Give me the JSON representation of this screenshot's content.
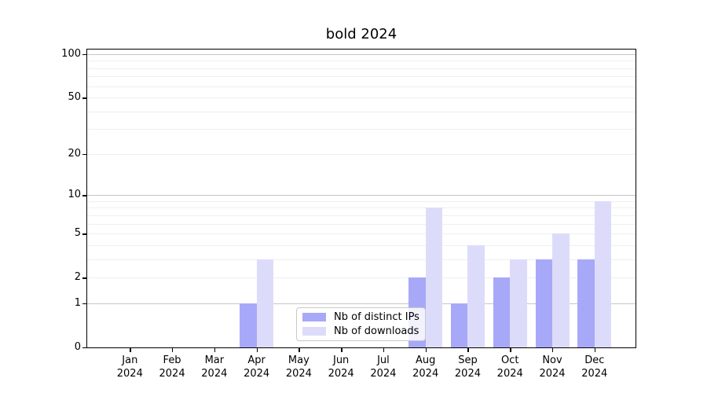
{
  "chart_data": {
    "type": "bar",
    "title": "bold 2024",
    "categories": [
      "Jan 2024",
      "Feb 2024",
      "Mar 2024",
      "Apr 2024",
      "May 2024",
      "Jun 2024",
      "Jul 2024",
      "Aug 2024",
      "Sep 2024",
      "Oct 2024",
      "Nov 2024",
      "Dec 2024"
    ],
    "x_months": [
      "Jan",
      "Feb",
      "Mar",
      "Apr",
      "May",
      "Jun",
      "Jul",
      "Aug",
      "Sep",
      "Oct",
      "Nov",
      "Dec"
    ],
    "x_year": "2024",
    "series": [
      {
        "name": "Nb of distinct IPs",
        "color": "#a8a8f8",
        "values": [
          0,
          0,
          0,
          1,
          0,
          0,
          0,
          2,
          1,
          2,
          3,
          3
        ]
      },
      {
        "name": "Nb of downloads",
        "color": "#dcdcfa",
        "values": [
          0,
          0,
          0,
          3,
          0,
          0,
          0,
          8,
          4,
          3,
          5,
          9
        ]
      }
    ],
    "yscale": "log1p",
    "ylim": [
      0,
      100
    ],
    "ytick_labels": [
      "0",
      "1",
      "2",
      "5",
      "10",
      "20",
      "50",
      "100"
    ],
    "ytick_values": [
      0,
      1,
      2,
      5,
      10,
      20,
      50,
      100
    ],
    "major_grid_values": [
      1,
      10,
      100
    ],
    "minor_grid_values": [
      2,
      3,
      4,
      5,
      6,
      7,
      8,
      9,
      20,
      30,
      40,
      50,
      60,
      70,
      80,
      90
    ],
    "grid": true,
    "legend_position": "lower center"
  },
  "colors": {
    "background": "#ffffff",
    "spine": "#000000",
    "text": "#000000",
    "major_grid": "#c6c6c6",
    "minor_grid": "#efefef",
    "legend_border": "#c9c9c9"
  }
}
